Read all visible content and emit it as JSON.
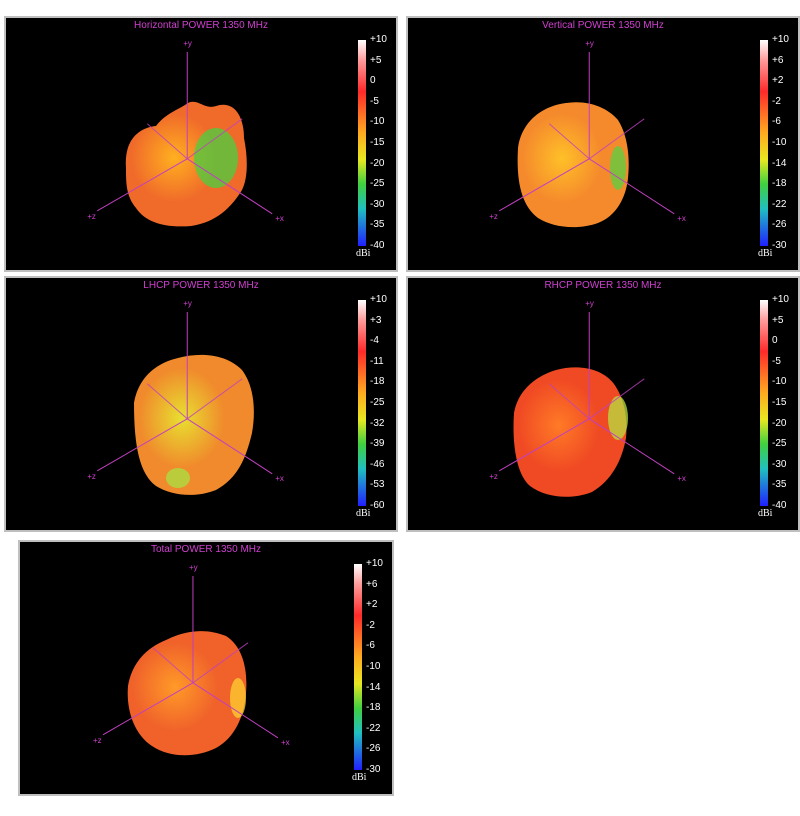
{
  "chart_data": [
    {
      "type": "3d-radiation-pattern",
      "title": "Horizontal POWER 1350  MHz",
      "axes": [
        "+y",
        "+x",
        "+z"
      ],
      "colorbar": {
        "unit": "dBi",
        "range": [
          -40,
          10
        ],
        "ticks": [
          "+10",
          "+5",
          "0",
          "-5",
          "-10",
          "-15",
          "-20",
          "-25",
          "-30",
          "-35",
          "-40"
        ]
      },
      "colors": {
        "body": "#f06a2a",
        "highlight": "#ffb020",
        "lobe": "#48d040"
      }
    },
    {
      "type": "3d-radiation-pattern",
      "title": "Vertical POWER 1350  MHz",
      "axes": [
        "+y",
        "+x",
        "+z"
      ],
      "colorbar": {
        "unit": "dBi",
        "range": [
          -30,
          10
        ],
        "ticks": [
          "+10",
          "+6",
          "+2",
          "-2",
          "-6",
          "-10",
          "-14",
          "-18",
          "-22",
          "-26",
          "-30"
        ]
      },
      "colors": {
        "body": "#f58a2c",
        "highlight": "#ffc028",
        "lobe": "#58d040"
      }
    },
    {
      "type": "3d-radiation-pattern",
      "title": "LHCP POWER 1350  MHz",
      "axes": [
        "+y",
        "+x",
        "+z"
      ],
      "colorbar": {
        "unit": "dBi",
        "range": [
          -60,
          10
        ],
        "ticks": [
          "+10",
          "+3",
          "-4",
          "-11",
          "-18",
          "-25",
          "-32",
          "-39",
          "-46",
          "-53",
          "-60"
        ]
      },
      "colors": {
        "body": "#f08a2c",
        "highlight": "#e8e030",
        "lobe": "#a8e040"
      }
    },
    {
      "type": "3d-radiation-pattern",
      "title": "RHCP POWER 1350  MHz",
      "axes": [
        "+y",
        "+x",
        "+z"
      ],
      "colorbar": {
        "unit": "dBi",
        "range": [
          -40,
          10
        ],
        "ticks": [
          "+10",
          "+5",
          "0",
          "-5",
          "-10",
          "-15",
          "-20",
          "-25",
          "-30",
          "-35",
          "-40"
        ]
      },
      "colors": {
        "body": "#f04a24",
        "highlight": "#ff7a26",
        "lobe": "#b8e040"
      }
    },
    {
      "type": "3d-radiation-pattern",
      "title": "Total POWER 1350  MHz",
      "axes": [
        "+y",
        "+x",
        "+z"
      ],
      "colorbar": {
        "unit": "dBi",
        "range": [
          -30,
          10
        ],
        "ticks": [
          "+10",
          "+6",
          "+2",
          "-2",
          "-6",
          "-10",
          "-14",
          "-18",
          "-22",
          "-26",
          "-30"
        ]
      },
      "colors": {
        "body": "#f0622a",
        "highlight": "#ff9a28",
        "lobe": "#ffd030"
      }
    }
  ]
}
